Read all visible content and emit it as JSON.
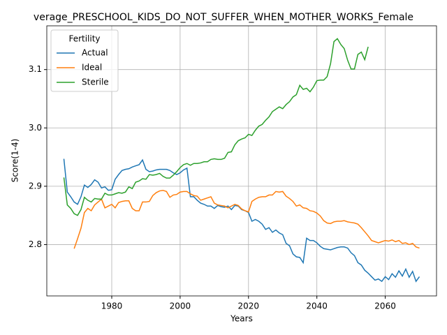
{
  "chart_data": {
    "type": "line",
    "title": "verage_PRESCHOOL_KIDS_DO_NOT_SUFFER_WHEN_MOTHER_WORKS_Female",
    "xlabel": "Years",
    "ylabel": "Score(1-4)",
    "legend_title": "Fertility",
    "legend": "upper left",
    "grid": true,
    "xlim": [
      1961,
      2075
    ],
    "ylim": [
      2.712,
      3.175
    ],
    "xticks": [
      1980,
      2000,
      2020,
      2040,
      2060
    ],
    "yticks": [
      2.8,
      2.9,
      {
        "value": 3,
        "label": "3.0"
      },
      3.1
    ],
    "x": [
      1966,
      1967,
      1968,
      1969,
      1970,
      1971,
      1972,
      1973,
      1974,
      1975,
      1976,
      1977,
      1978,
      1979,
      1980,
      1981,
      1982,
      1983,
      1984,
      1985,
      1986,
      1987,
      1988,
      1989,
      1990,
      1991,
      1992,
      1993,
      1994,
      1995,
      1996,
      1997,
      1998,
      1999,
      2000,
      2001,
      2002,
      2003,
      2004,
      2005,
      2006,
      2007,
      2008,
      2009,
      2010,
      2011,
      2012,
      2013,
      2014,
      2015,
      2016,
      2017,
      2018,
      2019,
      2020,
      2021,
      2022,
      2023,
      2024,
      2025,
      2026,
      2027,
      2028,
      2029,
      2030,
      2031,
      2032,
      2033,
      2034,
      2035,
      2036,
      2037,
      2038,
      2039,
      2040,
      2041,
      2042,
      2043,
      2044,
      2045,
      2046,
      2047,
      2048,
      2049,
      2050,
      2051,
      2052,
      2053,
      2054,
      2055,
      2056,
      2057,
      2058,
      2059,
      2060,
      2061,
      2062,
      2063,
      2064,
      2065,
      2066,
      2067,
      2068,
      2069,
      2070
    ],
    "series": [
      {
        "name": "Actual",
        "color": "#1f77b4",
        "values": [
          2.947,
          2.89,
          2.882,
          2.873,
          2.869,
          2.882,
          2.902,
          2.898,
          2.903,
          2.911,
          2.907,
          2.897,
          2.899,
          2.893,
          2.894,
          2.912,
          2.92,
          2.927,
          2.929,
          2.93,
          2.933,
          2.935,
          2.937,
          2.945,
          2.929,
          2.925,
          2.926,
          2.928,
          2.929,
          2.929,
          2.929,
          2.927,
          2.923,
          2.92,
          2.923,
          2.928,
          2.931,
          2.882,
          2.882,
          2.876,
          2.871,
          2.869,
          2.866,
          2.866,
          2.862,
          2.867,
          2.865,
          2.864,
          2.866,
          2.86,
          2.867,
          2.866,
          2.86,
          2.858,
          2.855,
          2.84,
          2.843,
          2.84,
          2.835,
          2.826,
          2.829,
          2.821,
          2.825,
          2.82,
          2.817,
          2.802,
          2.798,
          2.784,
          2.779,
          2.778,
          2.769,
          2.811,
          2.807,
          2.807,
          2.803,
          2.797,
          2.793,
          2.792,
          2.791,
          2.793,
          2.795,
          2.796,
          2.796,
          2.794,
          2.786,
          2.781,
          2.769,
          2.765,
          2.756,
          2.751,
          2.745,
          2.739,
          2.741,
          2.737,
          2.745,
          2.74,
          2.75,
          2.744,
          2.755,
          2.746,
          2.758,
          2.744,
          2.754,
          2.737,
          2.745
        ]
      },
      {
        "name": "Ideal",
        "color": "#ff7f0e",
        "values": [
          null,
          null,
          null,
          2.793,
          2.81,
          2.828,
          2.855,
          2.862,
          2.858,
          2.868,
          2.873,
          2.878,
          2.863,
          2.866,
          2.869,
          2.863,
          2.872,
          2.874,
          2.875,
          2.875,
          2.862,
          2.858,
          2.858,
          2.873,
          2.873,
          2.874,
          2.884,
          2.889,
          2.892,
          2.893,
          2.891,
          2.881,
          2.885,
          2.886,
          2.89,
          2.891,
          2.891,
          2.887,
          2.884,
          2.883,
          2.876,
          2.878,
          2.88,
          2.882,
          2.871,
          2.868,
          2.867,
          2.866,
          2.863,
          2.866,
          2.869,
          2.867,
          2.861,
          2.858,
          2.856,
          2.874,
          2.878,
          2.881,
          2.882,
          2.882,
          2.885,
          2.885,
          2.891,
          2.89,
          2.891,
          2.883,
          2.879,
          2.874,
          2.866,
          2.868,
          2.863,
          2.862,
          2.858,
          2.857,
          2.854,
          2.849,
          2.841,
          2.837,
          2.836,
          2.839,
          2.84,
          2.84,
          2.841,
          2.839,
          2.838,
          2.837,
          2.835,
          2.829,
          2.822,
          2.815,
          2.807,
          2.805,
          2.803,
          2.805,
          2.807,
          2.806,
          2.808,
          2.805,
          2.807,
          2.802,
          2.803,
          2.8,
          2.802,
          2.796,
          2.794
        ]
      },
      {
        "name": "Sterile",
        "color": "#2ca02c",
        "values": [
          2.915,
          2.868,
          2.862,
          2.853,
          2.85,
          2.86,
          2.881,
          2.876,
          2.873,
          2.879,
          2.878,
          2.878,
          2.888,
          2.885,
          2.885,
          2.887,
          2.889,
          2.888,
          2.89,
          2.899,
          2.896,
          2.907,
          2.909,
          2.913,
          2.912,
          2.92,
          2.919,
          2.92,
          2.922,
          2.917,
          2.914,
          2.914,
          2.919,
          2.925,
          2.932,
          2.937,
          2.939,
          2.936,
          2.939,
          2.939,
          2.94,
          2.942,
          2.942,
          2.946,
          2.947,
          2.946,
          2.946,
          2.948,
          2.958,
          2.959,
          2.971,
          2.978,
          2.981,
          2.983,
          2.989,
          2.987,
          2.996,
          3.003,
          3.006,
          3.013,
          3.019,
          3.028,
          3.032,
          3.036,
          3.033,
          3.04,
          3.045,
          3.053,
          3.057,
          3.073,
          3.066,
          3.068,
          3.062,
          3.07,
          3.081,
          3.082,
          3.082,
          3.088,
          3.11,
          3.148,
          3.153,
          3.143,
          3.136,
          3.116,
          3.101,
          3.101,
          3.126,
          3.13,
          3.117,
          3.139,
          null,
          null,
          null,
          null,
          null,
          null,
          null,
          null,
          null,
          null,
          null,
          null,
          null,
          null,
          null
        ]
      }
    ]
  }
}
